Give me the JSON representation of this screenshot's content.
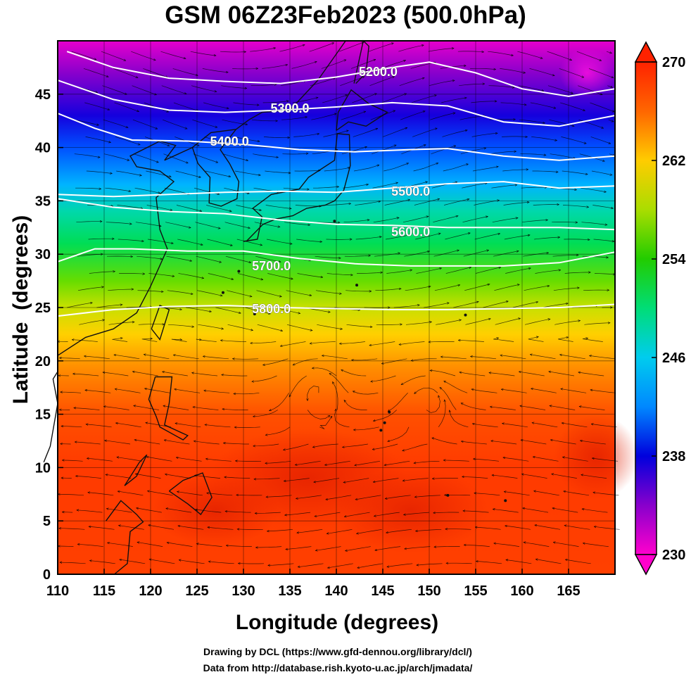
{
  "title": "GSM 06Z23Feb2023 (500.0hPa)",
  "xaxis": {
    "label": "Longitude (degrees)",
    "range": [
      110,
      170
    ],
    "ticks": [
      110,
      115,
      120,
      125,
      130,
      135,
      140,
      145,
      150,
      155,
      160,
      165
    ]
  },
  "yaxis": {
    "label": "Latitude  (degrees)",
    "range": [
      0,
      50
    ],
    "ticks": [
      0,
      5,
      10,
      15,
      20,
      25,
      30,
      35,
      40,
      45
    ]
  },
  "colorbar": {
    "range": [
      230,
      270
    ],
    "tick_labels": [
      230,
      238,
      246,
      254,
      262,
      270
    ],
    "colors": [
      "#ff00cc",
      "#8800cc",
      "#0000dd",
      "#0088ff",
      "#00ccee",
      "#00dd77",
      "#22cc00",
      "#aadd00",
      "#ffcc00",
      "#ff6600",
      "#ff2200"
    ]
  },
  "contours": [
    {
      "label": "5200.0",
      "label_lon": 144.5,
      "label_lat": 47.0,
      "points": [
        [
          111,
          49
        ],
        [
          116,
          47.5
        ],
        [
          122,
          46.5
        ],
        [
          128,
          46.2
        ],
        [
          134,
          46.0
        ],
        [
          140,
          46.6
        ],
        [
          146,
          47.5
        ],
        [
          150,
          48.0
        ],
        [
          155,
          47.0
        ],
        [
          160,
          45.5
        ],
        [
          165,
          44.8
        ],
        [
          170,
          45.5
        ]
      ]
    },
    {
      "label": "5300.0",
      "label_lon": 135.0,
      "label_lat": 43.6,
      "points": [
        [
          110,
          46.3
        ],
        [
          116,
          44.5
        ],
        [
          122,
          43.5
        ],
        [
          128,
          43.3
        ],
        [
          134,
          43.5
        ],
        [
          140,
          43.8
        ],
        [
          146,
          44.2
        ],
        [
          152,
          43.9
        ],
        [
          158,
          42.4
        ],
        [
          164,
          42.0
        ],
        [
          170,
          43.0
        ]
      ]
    },
    {
      "label": "5400.0",
      "label_lon": 128.5,
      "label_lat": 40.5,
      "points": [
        [
          110,
          43.2
        ],
        [
          114,
          41.8
        ],
        [
          118,
          40.7
        ],
        [
          124,
          40.6
        ],
        [
          130,
          40.3
        ],
        [
          136,
          39.8
        ],
        [
          142,
          39.6
        ],
        [
          148,
          39.8
        ],
        [
          152,
          39.9
        ],
        [
          158,
          39.2
        ],
        [
          164,
          38.8
        ],
        [
          170,
          39.2
        ]
      ]
    },
    {
      "label": "5500.0",
      "label_lon": 148.0,
      "label_lat": 35.8,
      "points": [
        [
          110,
          35.6
        ],
        [
          116,
          35.4
        ],
        [
          122,
          35.6
        ],
        [
          128,
          35.8
        ],
        [
          134,
          35.9
        ],
        [
          140,
          35.8
        ],
        [
          146,
          36.2
        ],
        [
          152,
          36.6
        ],
        [
          158,
          36.8
        ],
        [
          164,
          36.2
        ],
        [
          170,
          36.4
        ]
      ]
    },
    {
      "label": "5600.0",
      "label_lon": 148.0,
      "label_lat": 32.0,
      "points": [
        [
          110,
          35.2
        ],
        [
          116,
          34.4
        ],
        [
          122,
          34.0
        ],
        [
          128,
          33.8
        ],
        [
          134,
          33.2
        ],
        [
          140,
          32.8
        ],
        [
          146,
          32.7
        ],
        [
          152,
          32.5
        ],
        [
          158,
          32.5
        ],
        [
          164,
          32.5
        ],
        [
          170,
          32.3
        ]
      ]
    },
    {
      "label": "5700.0",
      "label_lon": 133.0,
      "label_lat": 28.8,
      "points": [
        [
          110,
          29.3
        ],
        [
          114,
          30.5
        ],
        [
          118,
          30.5
        ],
        [
          124,
          30.3
        ],
        [
          130,
          30.3
        ],
        [
          136,
          29.6
        ],
        [
          142,
          29.1
        ],
        [
          148,
          28.9
        ],
        [
          152,
          28.9
        ],
        [
          158,
          28.9
        ],
        [
          164,
          29.2
        ],
        [
          170,
          30.2
        ]
      ]
    },
    {
      "label": "5800.0",
      "label_lon": 133.0,
      "label_lat": 24.8,
      "points": [
        [
          110,
          24.2
        ],
        [
          116,
          24.8
        ],
        [
          122,
          25.1
        ],
        [
          128,
          25.2
        ],
        [
          134,
          25.0
        ],
        [
          140,
          24.9
        ],
        [
          146,
          24.8
        ],
        [
          152,
          24.8
        ],
        [
          158,
          24.9
        ],
        [
          164,
          25.0
        ],
        [
          170,
          25.3
        ]
      ]
    }
  ],
  "footer": {
    "line1": "Drawing by DCL (https://www.gfd-dennou.org/library/dcl/)",
    "line2": "Data from http://database.rish.kyoto-u.ac.jp/arch/jmadata/"
  }
}
